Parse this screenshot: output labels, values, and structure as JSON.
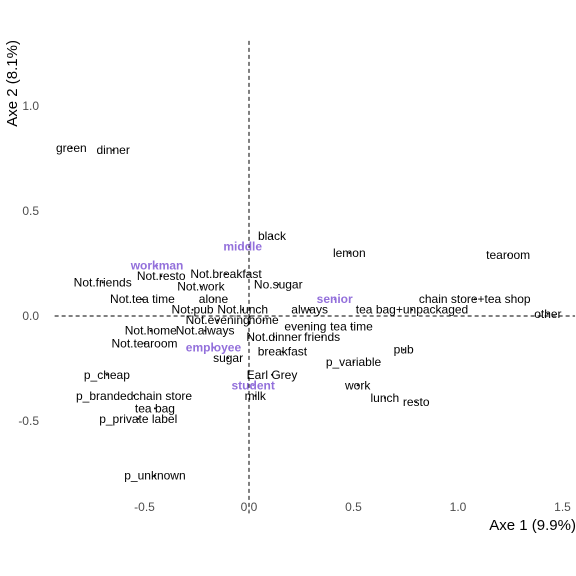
{
  "chart_data": {
    "type": "scatter",
    "title": "",
    "xlabel": "Axe 1 (9.9%)",
    "ylabel": "Axe 2 (8.1%)",
    "xlim": [
      -0.93,
      1.56
    ],
    "ylim": [
      -0.94,
      1.31
    ],
    "grid": false,
    "reference_lines": {
      "x": 0,
      "y": 0,
      "style": "dashed"
    },
    "x_ticks": [
      -0.5,
      0.0,
      0.5,
      1.0,
      1.5
    ],
    "x_tick_labels": [
      "-0.5",
      "0.0",
      "0.5",
      "1.0",
      "1.5"
    ],
    "y_ticks": [
      -0.5,
      0.0,
      0.5,
      1.0
    ],
    "y_tick_labels": [
      "-0.5",
      "0.0",
      "0.5",
      "1.0"
    ],
    "series": [
      {
        "name": "",
        "color": "#000000",
        "points": [
          {
            "label": "green",
            "x": -0.85,
            "y": 0.8
          },
          {
            "label": "dinner",
            "x": -0.65,
            "y": 0.79
          },
          {
            "label": "black",
            "x": 0.11,
            "y": 0.38
          },
          {
            "label": "lemon",
            "x": 0.48,
            "y": 0.3
          },
          {
            "label": "tearoom",
            "x": 1.24,
            "y": 0.29
          },
          {
            "label": "Not.resto",
            "x": -0.42,
            "y": 0.19
          },
          {
            "label": "Not.breakfast",
            "x": -0.11,
            "y": 0.2
          },
          {
            "label": "Not.friends",
            "x": -0.7,
            "y": 0.16
          },
          {
            "label": "Not.work",
            "x": -0.23,
            "y": 0.14
          },
          {
            "label": "No.sugar",
            "x": 0.14,
            "y": 0.15
          },
          {
            "label": "Not.tea time",
            "x": -0.51,
            "y": 0.08
          },
          {
            "label": "alone",
            "x": -0.17,
            "y": 0.08
          },
          {
            "label": "chain store+tea shop",
            "x": 1.08,
            "y": 0.08
          },
          {
            "label": "Not.pub",
            "x": -0.27,
            "y": 0.03
          },
          {
            "label": "Not.lunch",
            "x": -0.03,
            "y": 0.03
          },
          {
            "label": "always",
            "x": 0.29,
            "y": 0.03
          },
          {
            "label": "tea bag+unpackaged",
            "x": 0.78,
            "y": 0.03
          },
          {
            "label": "other",
            "x": 1.43,
            "y": 0.01
          },
          {
            "label": "Not.evening",
            "x": -0.15,
            "y": -0.02
          },
          {
            "label": "home",
            "x": 0.07,
            "y": -0.02
          },
          {
            "label": "evening",
            "x": 0.27,
            "y": -0.05
          },
          {
            "label": "tea time",
            "x": 0.49,
            "y": -0.05
          },
          {
            "label": "Not.home",
            "x": -0.47,
            "y": -0.07
          },
          {
            "label": "Not.always",
            "x": -0.21,
            "y": -0.07
          },
          {
            "label": "Not.dinner",
            "x": 0.12,
            "y": -0.1
          },
          {
            "label": "friends",
            "x": 0.35,
            "y": -0.1
          },
          {
            "label": "Not.tearoom",
            "x": -0.5,
            "y": -0.13
          },
          {
            "label": "breakfast",
            "x": 0.16,
            "y": -0.17
          },
          {
            "label": "pub",
            "x": 0.74,
            "y": -0.16
          },
          {
            "label": "sugar",
            "x": -0.1,
            "y": -0.2
          },
          {
            "label": "p_variable",
            "x": 0.5,
            "y": -0.22
          },
          {
            "label": "p_cheap",
            "x": -0.68,
            "y": -0.28
          },
          {
            "label": "Earl Grey",
            "x": 0.11,
            "y": -0.28
          },
          {
            "label": "work",
            "x": 0.52,
            "y": -0.33
          },
          {
            "label": "p_brandedchain store",
            "x": -0.55,
            "y": -0.38
          },
          {
            "label": "milk",
            "x": 0.03,
            "y": -0.38
          },
          {
            "label": "lunch",
            "x": 0.65,
            "y": -0.39
          },
          {
            "label": "resto",
            "x": 0.8,
            "y": -0.41
          },
          {
            "label": "tea bag",
            "x": -0.45,
            "y": -0.44
          },
          {
            "label": "p_private label",
            "x": -0.53,
            "y": -0.49
          },
          {
            "label": "p_unknown",
            "x": -0.45,
            "y": -0.76
          }
        ]
      },
      {
        "name": "",
        "color": "#9370DB",
        "points": [
          {
            "label": "middle",
            "x": -0.03,
            "y": 0.33
          },
          {
            "label": "workman",
            "x": -0.44,
            "y": 0.24
          },
          {
            "label": "senior",
            "x": 0.41,
            "y": 0.08
          },
          {
            "label": "employee",
            "x": -0.17,
            "y": -0.15
          },
          {
            "label": "student",
            "x": 0.02,
            "y": -0.33
          }
        ]
      }
    ]
  }
}
